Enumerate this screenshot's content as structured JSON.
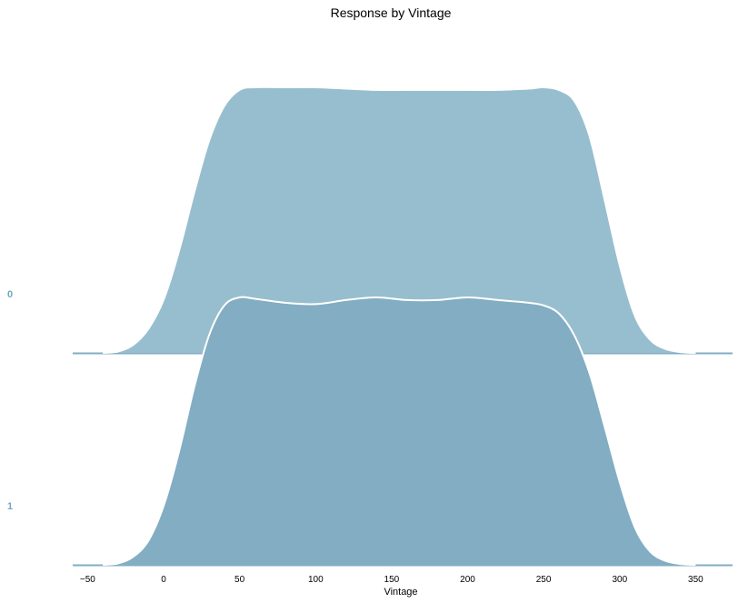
{
  "chart_data": {
    "type": "ridgeline",
    "title": "Response by Vintage",
    "xlabel": "Vintage",
    "ylabel": "",
    "xlim": [
      -60,
      370
    ],
    "xticks": [
      -50,
      0,
      50,
      100,
      150,
      200,
      250,
      300,
      350
    ],
    "colors": {
      "label": "#6fa8c5",
      "fill_0": "#97bece",
      "fill_1": "#82adc3",
      "outline": "#ffffff",
      "baseline": "#82adc3"
    },
    "series": [
      {
        "name": "0",
        "x": [
          -40,
          -30,
          -20,
          -10,
          0,
          10,
          20,
          30,
          40,
          50,
          60,
          80,
          100,
          120,
          140,
          160,
          180,
          200,
          220,
          240,
          250,
          260,
          270,
          280,
          290,
          300,
          310,
          320,
          330,
          340,
          350
        ],
        "density": [
          0.0,
          0.005,
          0.03,
          0.09,
          0.2,
          0.38,
          0.6,
          0.8,
          0.93,
          0.99,
          1.0,
          1.0,
          1.0,
          0.995,
          0.99,
          0.99,
          0.99,
          0.99,
          0.99,
          0.995,
          1.0,
          0.99,
          0.95,
          0.82,
          0.58,
          0.33,
          0.14,
          0.05,
          0.015,
          0.003,
          0.0
        ]
      },
      {
        "name": "1",
        "x": [
          -40,
          -30,
          -20,
          -10,
          0,
          10,
          20,
          30,
          40,
          50,
          60,
          80,
          100,
          120,
          140,
          160,
          180,
          200,
          220,
          240,
          250,
          260,
          270,
          280,
          290,
          300,
          310,
          320,
          330,
          340,
          350
        ],
        "density": [
          0.0,
          0.005,
          0.03,
          0.09,
          0.22,
          0.42,
          0.66,
          0.86,
          0.97,
          1.0,
          0.995,
          0.98,
          0.975,
          0.99,
          1.0,
          0.99,
          0.99,
          1.0,
          0.99,
          0.98,
          0.97,
          0.94,
          0.86,
          0.72,
          0.52,
          0.31,
          0.14,
          0.05,
          0.015,
          0.003,
          0.0
        ]
      }
    ]
  }
}
